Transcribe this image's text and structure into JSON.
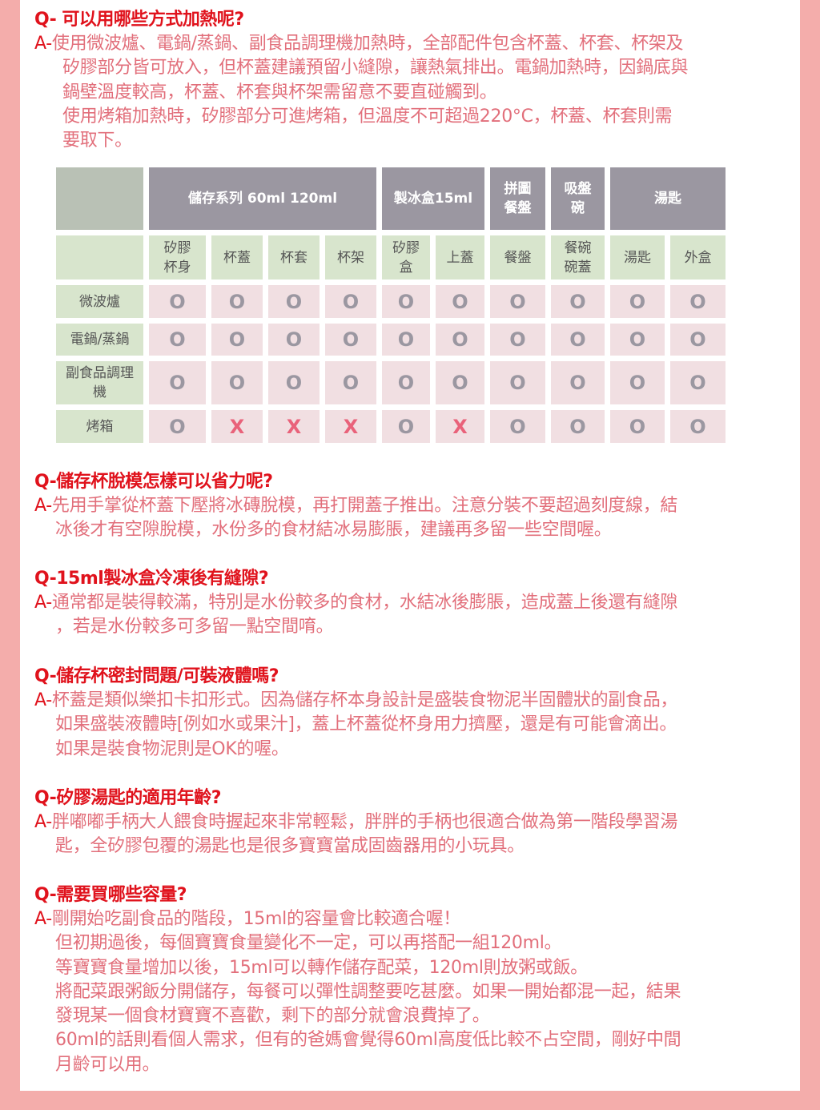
{
  "colors": {
    "border": "#f4adab",
    "question": "#e0121c",
    "answer": "#e26f7b",
    "header": "#9b97a1",
    "green": "#d8e5cd",
    "cell": "#f1dfe2",
    "ok": "#9b97a1",
    "no": "#e9627a"
  },
  "faq": [
    {
      "q": "Q- 可以用哪些方式加熱呢?",
      "a_prefix": "A-",
      "a": [
        "使用微波爐、電鍋/蒸鍋、副食品調理機加熱時，全部配件包含杯蓋、杯套、杯架及",
        "矽膠部分皆可放入，但杯蓋建議預留小縫隙，讓熱氣排出。電鍋加熱時，因鍋底與",
        "鍋壁溫度較高，杯蓋、杯套與杯架需留意不要直碰觸到。",
        "使用烤箱加熱時，矽膠部分可進烤箱，但溫度不可超過220°C，杯蓋、杯套則需",
        "要取下。"
      ]
    },
    {
      "q": "Q-儲存杯脫模怎樣可以省力呢?",
      "a_prefix": "A-",
      "a": [
        "先用手掌從杯蓋下壓將冰磚脫模，再打開蓋子推出。注意分裝不要超過刻度線，結",
        "冰後才有空隙脫模，水份多的食材結冰易膨脹，建議再多留一些空間喔。"
      ]
    },
    {
      "q": "Q-15ml製冰盒冷凍後有縫隙?",
      "a_prefix": "A-",
      "a": [
        "通常都是裝得較滿，特別是水份較多的食材，水結冰後膨脹，造成蓋上後還有縫隙",
        "，若是水份較多可多留一點空間唷。"
      ]
    },
    {
      "q": "Q-儲存杯密封問題/可裝液體嗎?",
      "a_prefix": "A-",
      "a": [
        "杯蓋是類似樂扣卡扣形式。因為儲存杯本身設計是盛裝食物泥半固體狀的副食品，",
        "如果盛裝液體時[例如水或果汁]，蓋上杯蓋從杯身用力擠壓，還是有可能會滴出。",
        "如果是裝食物泥則是OK的喔。"
      ]
    },
    {
      "q": "Q-矽膠湯匙的適用年齡?",
      "a_prefix": "A-",
      "a": [
        "胖嘟嘟手柄大人餵食時握起來非常輕鬆，胖胖的手柄也很適合做為第一階段學習湯",
        "匙，全矽膠包覆的湯匙也是很多寶寶當成固齒器用的小玩具。"
      ]
    },
    {
      "q": "Q-需要買哪些容量?",
      "a_prefix": "A-",
      "a": [
        "剛開始吃副食品的階段，15ml的容量會比較適合喔！",
        "但初期過後，每個寶寶食量變化不一定，可以再搭配一組120ml。",
        "等寶寶食量增加以後，15ml可以轉作儲存配菜，120ml則放粥或飯。",
        "將配菜跟粥飯分開儲存，每餐可以彈性調整要吃甚麼。如果一開始都混一起，結果",
        "發現某一個食材寶寶不喜歡，剩下的部分就會浪費掉了。",
        "60ml的話則看個人需求，但有的爸媽會覺得60ml高度低比較不占空間，剛好中間",
        "月齡可以用。"
      ]
    }
  ],
  "table": {
    "groups": [
      "儲存系列 60ml 120ml",
      "製冰盒15ml",
      "拼圖\n餐盤",
      "吸盤\n碗",
      "湯匙"
    ],
    "items": [
      "矽膠\n杯身",
      "杯蓋",
      "杯套",
      "杯架",
      "矽膠\n盒",
      "上蓋",
      "餐盤",
      "餐碗\n碗蓋",
      "湯匙",
      "外盒"
    ],
    "rows": [
      {
        "label": "微波爐",
        "values": [
          "O",
          "O",
          "O",
          "O",
          "O",
          "O",
          "O",
          "O",
          "O",
          "O"
        ]
      },
      {
        "label": "電鍋/蒸鍋",
        "values": [
          "O",
          "O",
          "O",
          "O",
          "O",
          "O",
          "O",
          "O",
          "O",
          "O"
        ]
      },
      {
        "label": "副食品調理\n機",
        "values": [
          "O",
          "O",
          "O",
          "O",
          "O",
          "O",
          "O",
          "O",
          "O",
          "O"
        ]
      },
      {
        "label": "烤箱",
        "values": [
          "O",
          "X",
          "X",
          "X",
          "O",
          "X",
          "O",
          "O",
          "O",
          "O"
        ]
      }
    ]
  }
}
